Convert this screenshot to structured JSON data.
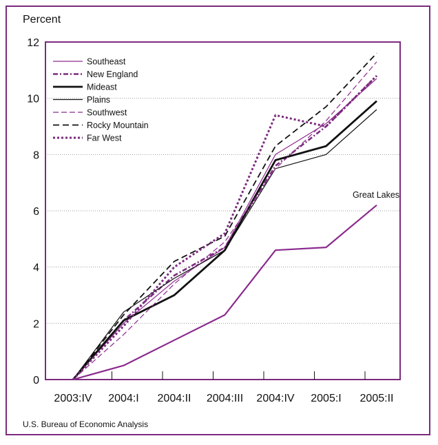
{
  "chart_data": {
    "type": "line",
    "title": "",
    "xlabel": "",
    "ylabel": "Percent",
    "categories": [
      "2003:IV",
      "2004:I",
      "2004:II",
      "2004:III",
      "2004:IV",
      "2005:I",
      "2005:II"
    ],
    "ylim": [
      0,
      12
    ],
    "yticks": [
      0,
      2,
      4,
      6,
      8,
      10,
      12
    ],
    "grid": "horizontal dotted",
    "legend_position": "top-left",
    "series": [
      {
        "name": "Southeast",
        "color": "#8b2a8e",
        "style": "solid-thin",
        "values": [
          0,
          2.0,
          3.5,
          4.7,
          8.0,
          9.1,
          10.7
        ]
      },
      {
        "name": "New England",
        "color": "#7b2a7e",
        "style": "dash-dot",
        "values": [
          0,
          2.1,
          3.7,
          4.7,
          7.6,
          9.0,
          10.8
        ]
      },
      {
        "name": "Mideast",
        "color": "#111111",
        "style": "solid-thick",
        "values": [
          0,
          2.1,
          3.0,
          4.6,
          7.8,
          8.3,
          9.9
        ]
      },
      {
        "name": "Plains",
        "color": "#111111",
        "style": "solid-thin",
        "values": [
          0,
          2.4,
          3.6,
          4.6,
          7.5,
          8.0,
          9.6
        ]
      },
      {
        "name": "Southwest",
        "color": "#8b2a8e",
        "style": "dashed-thin",
        "values": [
          0,
          1.6,
          3.4,
          4.9,
          7.5,
          9.2,
          11.3
        ]
      },
      {
        "name": "Rocky Mountain",
        "color": "#111111",
        "style": "dashed",
        "values": [
          0,
          2.3,
          4.2,
          5.1,
          8.3,
          9.7,
          11.6
        ]
      },
      {
        "name": "Far West",
        "color": "#7b2a7e",
        "style": "dotted-thick",
        "values": [
          0,
          1.9,
          4.0,
          5.2,
          9.4,
          9.0,
          10.8
        ]
      },
      {
        "name": "Great Lakes",
        "color": "#8b2a8e",
        "style": "solid-medium",
        "values": [
          0,
          0.5,
          1.4,
          2.3,
          4.6,
          4.7,
          6.2
        ]
      }
    ],
    "annotations": [
      {
        "text": "Great Lakes",
        "series": "Great Lakes"
      }
    ]
  },
  "source": "U.S. Bureau of Economic Analysis",
  "colors": {
    "frame": "#7b2a7e",
    "grid": "#999999"
  }
}
